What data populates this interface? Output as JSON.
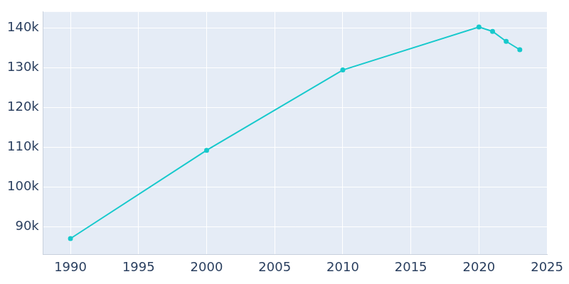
{
  "chart_data": {
    "type": "line",
    "x": [
      1990,
      2000,
      2010,
      2020,
      2021,
      2022,
      2023
    ],
    "values": [
      87000,
      109200,
      129400,
      140200,
      139100,
      136600,
      134500
    ],
    "color": "#17c9cc",
    "marker": "circle",
    "xlim": [
      1988,
      2025
    ],
    "xticks": [
      1990,
      1995,
      2000,
      2005,
      2010,
      2015,
      2020,
      2025
    ],
    "ylim": [
      83000,
      144000
    ],
    "yticks": [
      {
        "value": 90000,
        "label": "90k"
      },
      {
        "value": 100000,
        "label": "100k"
      },
      {
        "value": 110000,
        "label": "110k"
      },
      {
        "value": 120000,
        "label": "120k"
      },
      {
        "value": 130000,
        "label": "130k"
      },
      {
        "value": 140000,
        "label": "140k"
      }
    ],
    "grid": true
  }
}
